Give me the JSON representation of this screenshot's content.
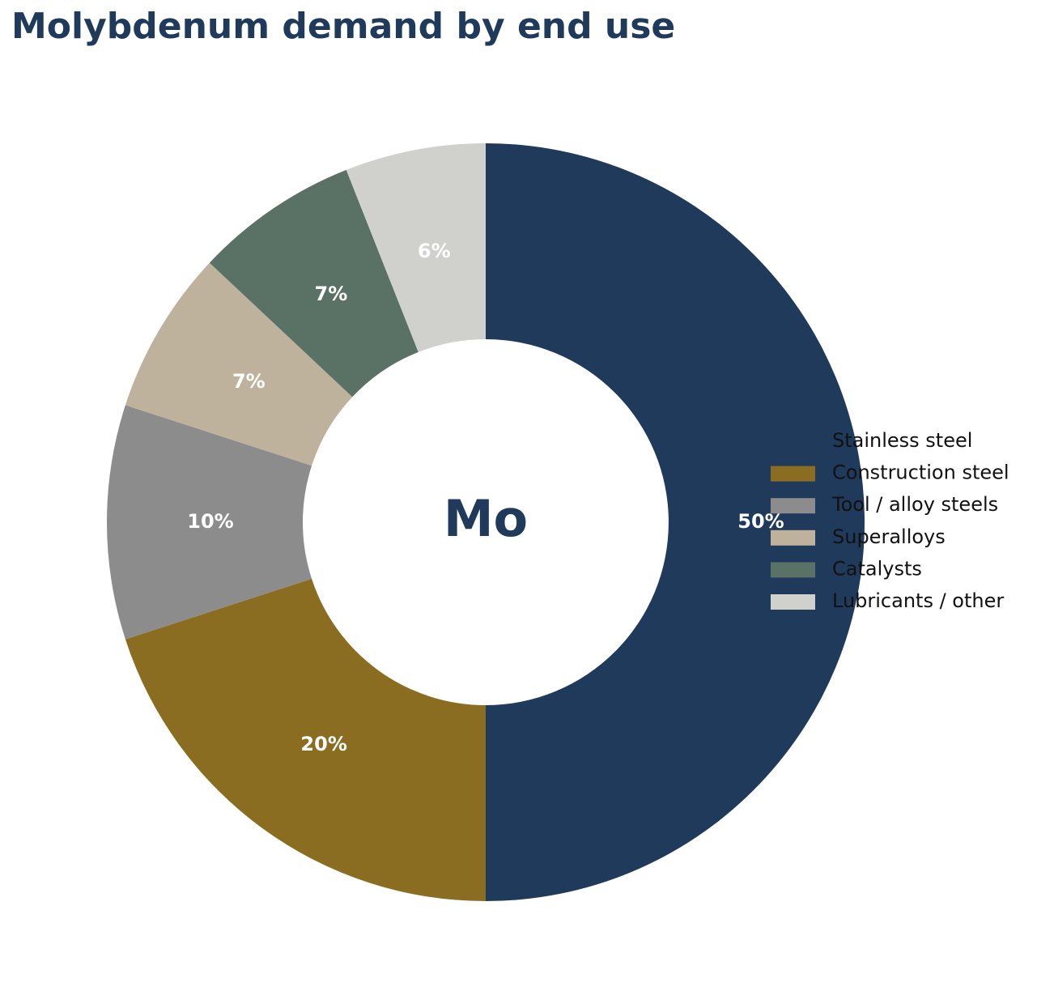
{
  "chart_data": {
    "type": "donut",
    "title": "Molybdenum demand by end use",
    "center_label": "Mo",
    "categories": [
      "Stainless steel",
      "Construction steel",
      "Tool / alloy steels",
      "Superalloys",
      "Catalysts",
      "Lubricants / other"
    ],
    "values": [
      50,
      20,
      10,
      7,
      7,
      6
    ],
    "value_labels": [
      "50%",
      "20%",
      "10%",
      "7%",
      "7%",
      "6%"
    ],
    "colors": [
      "#1f3a5a",
      "#8b6d22",
      "#8c8c8c",
      "#bfb29c",
      "#5a7266",
      "#d0d0cc"
    ],
    "legend": "right"
  }
}
